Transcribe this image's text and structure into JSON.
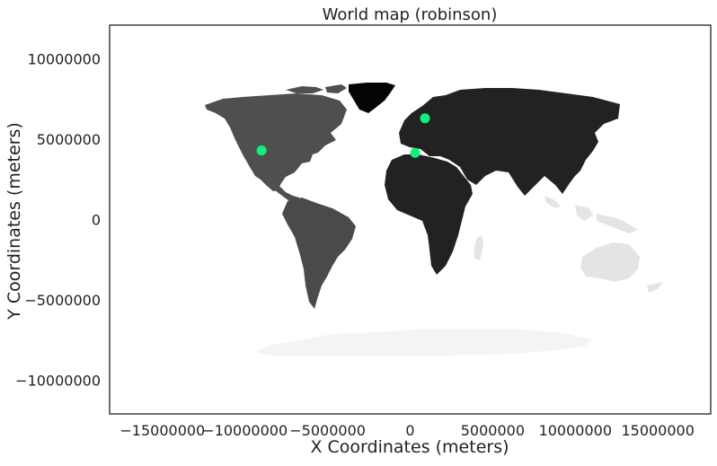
{
  "title": "World map (robinson)",
  "xlabel": "X Coordinates (meters)",
  "ylabel": "Y Coordinates (meters)",
  "x_ticks": [
    {
      "value": -15000000,
      "label": "−15000000"
    },
    {
      "value": -10000000,
      "label": "−10000000"
    },
    {
      "value": -5000000,
      "label": "−5000000"
    },
    {
      "value": 0,
      "label": "0"
    },
    {
      "value": 5000000,
      "label": "5000000"
    },
    {
      "value": 10000000,
      "label": "10000000"
    },
    {
      "value": 15000000,
      "label": "15000000"
    }
  ],
  "y_ticks": [
    {
      "value": 10000000,
      "label": "10000000"
    },
    {
      "value": 5000000,
      "label": "5000000"
    },
    {
      "value": 0,
      "label": "0"
    },
    {
      "value": -5000000,
      "label": "−5000000"
    },
    {
      "value": -10000000,
      "label": "−10000000"
    }
  ],
  "xlim": [
    -18200000,
    18200000
  ],
  "ylim": [
    -12100000,
    12100000
  ],
  "colors": {
    "north_america": "#4f4f4f",
    "south_america": "#4a4a4a",
    "greenland": "#050505",
    "eurasia_africa": "#222222",
    "oceania": "#e4e4e4",
    "antarctica": "#f4f4f4",
    "points": "#0ff07e",
    "frame": "#222222"
  },
  "points": [
    {
      "x": -9000000,
      "y": 4300000
    },
    {
      "x": 900000,
      "y": 6300000
    },
    {
      "x": 300000,
      "y": 4150000
    }
  ]
}
